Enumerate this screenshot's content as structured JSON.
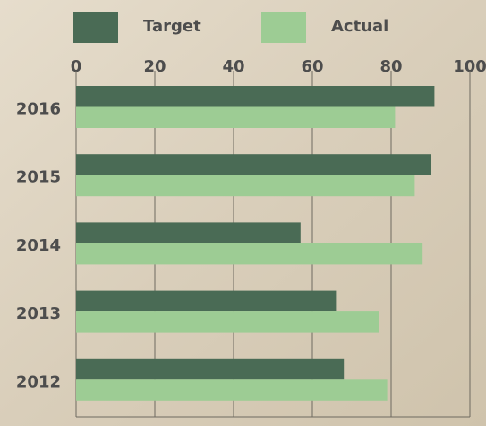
{
  "chart_data": {
    "type": "bar",
    "orientation": "horizontal",
    "categories": [
      "2016",
      "2015",
      "2014",
      "2013",
      "2012"
    ],
    "series": [
      {
        "name": "Target",
        "color": "#4a6b55",
        "values": [
          91,
          90,
          57,
          66,
          68
        ]
      },
      {
        "name": "Actual",
        "color": "#9dcc94",
        "values": [
          81,
          86,
          88,
          77,
          79
        ]
      }
    ],
    "xlim": [
      0,
      100
    ],
    "xticks": [
      0,
      20,
      40,
      60,
      80,
      100
    ],
    "grid": true
  }
}
